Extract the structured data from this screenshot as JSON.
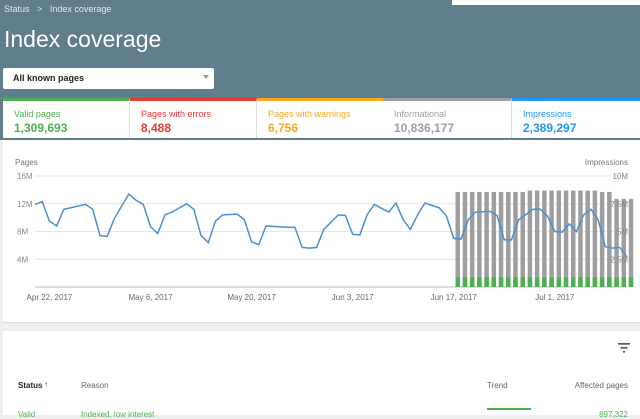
{
  "header": {
    "breadcrumb_root": "Status",
    "breadcrumb_sep": ">",
    "breadcrumb_current": "Index coverage",
    "title": "Index coverage",
    "filter_value": "All known pages"
  },
  "cards": [
    {
      "label": "Valid pages",
      "value": "1,309,693",
      "color": "#4caf50"
    },
    {
      "label": "Pages with errors",
      "value": "8,488",
      "color": "#e53935"
    },
    {
      "label": "Pages with warnings",
      "value": "6,756",
      "color": "#f5a623"
    },
    {
      "label": "Informational",
      "value": "10,836,177",
      "color": "#9e9e9e"
    },
    {
      "label": "Impressions",
      "value": "2,389,297",
      "color": "#2196f3"
    }
  ],
  "chart_data": {
    "type": "bar+line",
    "left_axis_label": "Pages",
    "right_axis_label": "Impressions",
    "left_ticks": [
      "16M",
      "12M",
      "8M",
      "4M"
    ],
    "left_tick_values": [
      16,
      12,
      8,
      4
    ],
    "left_ylim": [
      0,
      16
    ],
    "right_ticks": [
      "10M",
      "7.5M",
      "5M",
      "2.5M"
    ],
    "right_tick_values": [
      10,
      7.5,
      5,
      2.5
    ],
    "right_ylim": [
      0,
      10
    ],
    "x_ticks": [
      "Apr 22, 2017",
      "May 6, 2017",
      "May 20, 2017",
      "Jun 3, 2017",
      "Jun 17, 2017",
      "Jul 1, 2017"
    ],
    "x_tick_dates": [
      "2017-04-22",
      "2017-05-06",
      "2017-05-20",
      "2017-06-03",
      "2017-06-17",
      "2017-07-01"
    ],
    "xlim": [
      "2017-04-20",
      "2017-07-11"
    ],
    "grid": true,
    "line_color": "#4a90d0",
    "bar_color": "#9e9e9e",
    "bar_valid_color": "#4caf50",
    "impressions_line": [
      [
        "2017-04-20",
        7.44
      ],
      [
        "2017-04-21",
        7.69
      ],
      [
        "2017-04-22",
        5.94
      ],
      [
        "2017-04-23",
        5.5
      ],
      [
        "2017-04-24",
        7.0
      ],
      [
        "2017-04-27",
        7.44
      ],
      [
        "2017-04-28",
        7.0
      ],
      [
        "2017-04-29",
        4.63
      ],
      [
        "2017-04-30",
        4.56
      ],
      [
        "2017-05-01",
        6.19
      ],
      [
        "2017-05-03",
        8.38
      ],
      [
        "2017-05-04",
        7.81
      ],
      [
        "2017-05-05",
        7.44
      ],
      [
        "2017-05-06",
        5.44
      ],
      [
        "2017-05-07",
        4.81
      ],
      [
        "2017-05-08",
        6.5
      ],
      [
        "2017-05-09",
        6.75
      ],
      [
        "2017-05-11",
        7.5
      ],
      [
        "2017-05-12",
        7.0
      ],
      [
        "2017-05-13",
        4.63
      ],
      [
        "2017-05-14",
        4.0
      ],
      [
        "2017-05-15",
        5.94
      ],
      [
        "2017-05-16",
        6.5
      ],
      [
        "2017-05-18",
        6.56
      ],
      [
        "2017-05-19",
        6.06
      ],
      [
        "2017-05-20",
        4.06
      ],
      [
        "2017-05-21",
        3.81
      ],
      [
        "2017-05-22",
        5.5
      ],
      [
        "2017-05-25",
        5.38
      ],
      [
        "2017-05-26",
        5.38
      ],
      [
        "2017-05-27",
        3.56
      ],
      [
        "2017-05-28",
        3.5
      ],
      [
        "2017-05-29",
        3.56
      ],
      [
        "2017-05-30",
        5.19
      ],
      [
        "2017-06-01",
        6.5
      ],
      [
        "2017-06-02",
        6.44
      ],
      [
        "2017-06-03",
        4.75
      ],
      [
        "2017-06-04",
        4.69
      ],
      [
        "2017-06-05",
        6.5
      ],
      [
        "2017-06-06",
        7.44
      ],
      [
        "2017-06-08",
        6.75
      ],
      [
        "2017-06-09",
        7.56
      ],
      [
        "2017-06-10",
        6.06
      ],
      [
        "2017-06-11",
        5.19
      ],
      [
        "2017-06-12",
        6.5
      ],
      [
        "2017-06-13",
        7.56
      ],
      [
        "2017-06-15",
        7.13
      ],
      [
        "2017-06-16",
        6.38
      ],
      [
        "2017-06-17",
        4.38
      ],
      [
        "2017-06-18",
        4.31
      ],
      [
        "2017-06-19",
        6.06
      ],
      [
        "2017-06-20",
        6.75
      ],
      [
        "2017-06-22",
        6.81
      ],
      [
        "2017-06-23",
        6.44
      ],
      [
        "2017-06-24",
        4.25
      ],
      [
        "2017-06-25",
        4.25
      ],
      [
        "2017-06-26",
        6.06
      ],
      [
        "2017-06-28",
        7.0
      ],
      [
        "2017-06-29",
        7.0
      ],
      [
        "2017-06-30",
        6.38
      ],
      [
        "2017-07-01",
        5.0
      ],
      [
        "2017-07-02",
        4.94
      ],
      [
        "2017-07-03",
        5.69
      ],
      [
        "2017-07-04",
        5.0
      ],
      [
        "2017-07-05",
        6.5
      ],
      [
        "2017-07-06",
        7.0
      ],
      [
        "2017-07-07",
        6.06
      ],
      [
        "2017-07-08",
        3.63
      ],
      [
        "2017-07-09",
        3.5
      ],
      [
        "2017-07-10",
        3.56
      ],
      [
        "2017-07-11",
        2.69
      ]
    ],
    "pages_bars": {
      "start": "2017-06-17",
      "total": [
        13.7,
        13.7,
        13.7,
        13.7,
        13.7,
        13.7,
        13.7,
        13.7,
        13.7,
        13.7,
        13.9,
        13.9,
        13.9,
        13.9,
        13.9,
        13.9,
        13.9,
        13.9,
        13.9,
        13.9,
        13.7,
        13.7,
        12.7,
        12.7,
        12.7
      ],
      "valid": [
        1.4,
        1.4,
        1.4,
        1.4,
        1.4,
        1.4,
        1.4,
        1.4,
        1.4,
        1.4,
        1.4,
        1.4,
        1.4,
        1.4,
        1.4,
        1.4,
        1.4,
        1.4,
        1.4,
        1.4,
        1.4,
        1.4,
        1.4,
        1.4,
        1.4
      ]
    }
  },
  "table": {
    "filter_icon": "filter-icon",
    "columns": [
      "Status",
      "Reason",
      "Trend",
      "Affected pages"
    ],
    "sort_icon": "arrow-up-icon",
    "rows": [
      {
        "status": "Valid",
        "reason": "Indexed, low interest",
        "pages": "897,322"
      }
    ]
  }
}
